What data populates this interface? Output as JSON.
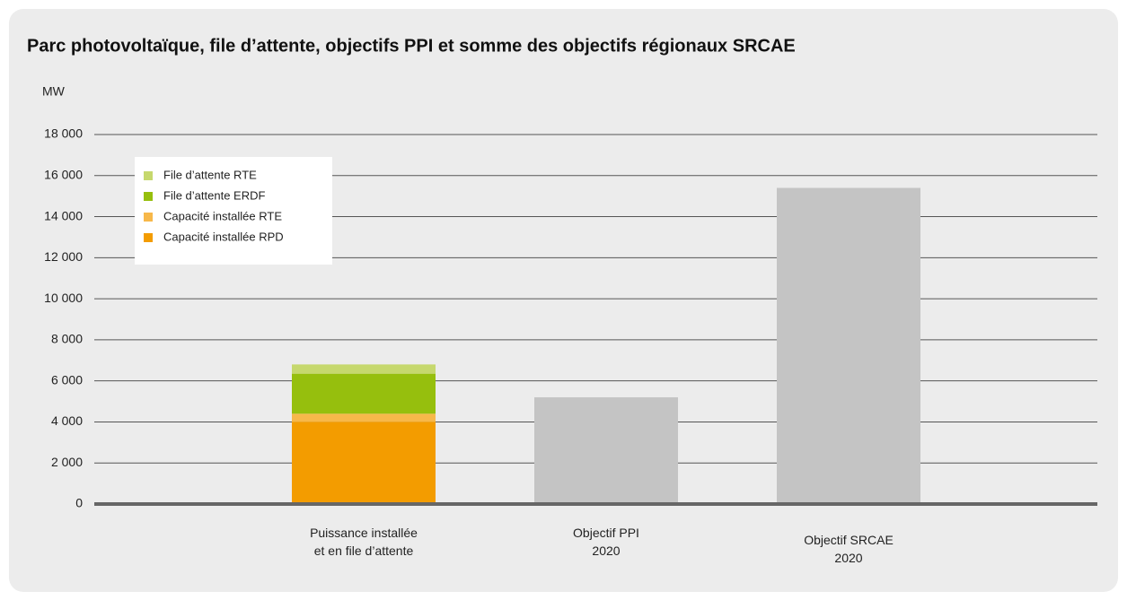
{
  "chart_data": {
    "type": "bar",
    "stacked": true,
    "title": "Parc photovoltaïque, file d’attente, objectifs PPI et somme des objectifs régionaux SRCAE",
    "y_label": "MW",
    "categories": [
      "Puissance installée\net en file d’attente",
      "Objectif PPI\n2020",
      "Objectif SRCAE\n2020"
    ],
    "series": [
      {
        "name": "Capacité installée RPD",
        "color": "#f39c00",
        "values": [
          4000,
          null,
          null
        ]
      },
      {
        "name": "Capacité installée RTE",
        "color": "#f7b84a",
        "values": [
          400,
          null,
          null
        ]
      },
      {
        "name": "File d’attente ERDF",
        "color": "#96bf0d",
        "values": [
          1950,
          null,
          null
        ]
      },
      {
        "name": "File d’attente RTE",
        "color": "#c6d86d",
        "values": [
          450,
          null,
          null
        ]
      },
      {
        "color": "#c4c4c4",
        "values": [
          null,
          5200,
          15400
        ]
      }
    ],
    "ylim": [
      0,
      18000
    ],
    "yticks": [
      0,
      {
        "value": 2000,
        "label": "2 000"
      },
      {
        "value": 4000,
        "label": "4 000"
      },
      {
        "value": 6000,
        "label": "6 000"
      },
      {
        "value": 8000,
        "label": "8 000"
      },
      {
        "value": 10000,
        "label": "10 000"
      },
      {
        "value": 12000,
        "label": "12 000"
      },
      {
        "value": 14000,
        "label": "14 000"
      },
      {
        "value": 16000,
        "label": "16 000"
      },
      {
        "value": 18000,
        "label": "18 000"
      }
    ],
    "grid": true,
    "legend": "upper left"
  }
}
